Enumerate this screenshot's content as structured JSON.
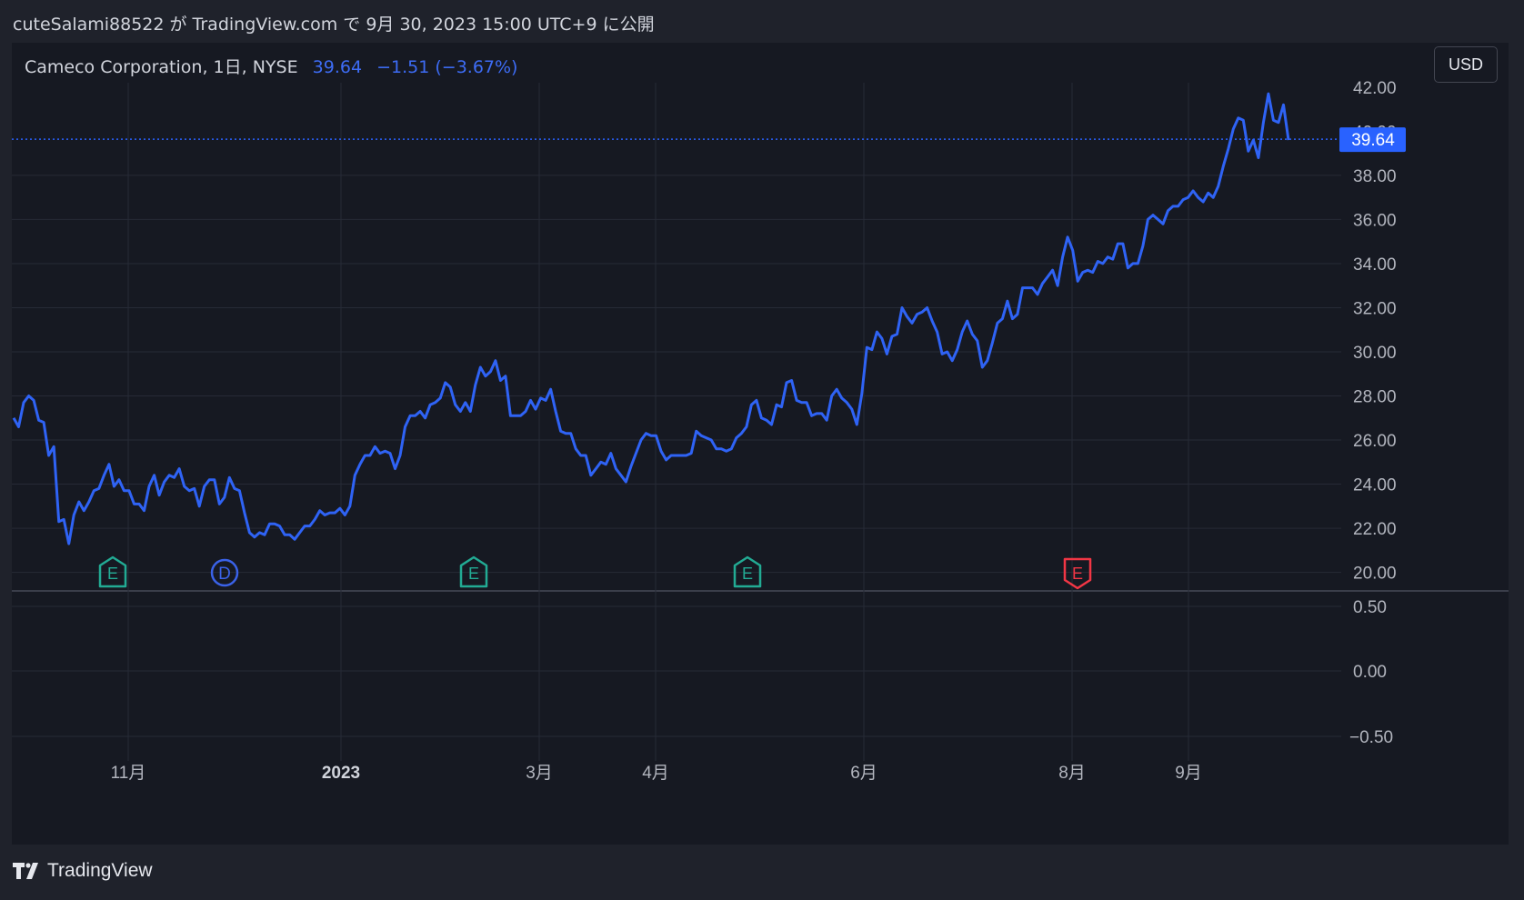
{
  "header": {
    "publisher_line": "cuteSalami88522 が TradingView.com で 9月 30, 2023 15:00 UTC+9 に公開"
  },
  "legend": {
    "symbol": "Cameco Corporation, 1日, NYSE",
    "price": "39.64",
    "change": "−1.51 (−3.67%)"
  },
  "currency": "USD",
  "last_price_label": "39.64",
  "footer": {
    "brand": "TradingView"
  },
  "colors": {
    "line": "#2f63f5",
    "last_price": "#2962ff",
    "earnings_past": "#22ab94",
    "earnings_next": "#f23645",
    "dividend": "#3a62e8",
    "background": "#161922",
    "grid": "#262a36"
  },
  "chart_data": {
    "type": "line",
    "title": "Cameco Corporation, 1日, NYSE",
    "xlabel": "",
    "ylabel": "",
    "ylim": [
      19.2,
      42.2
    ],
    "yticks": [
      20,
      22,
      24,
      26,
      28,
      30,
      32,
      34,
      36,
      38
    ],
    "yticks_partial": [
      "42.00",
      "40.00"
    ],
    "x_tick_labels": [
      "11月",
      "2023",
      "3月",
      "4月",
      "6月",
      "8月",
      "9月"
    ],
    "lower_pane": {
      "yticks": [
        "0.50",
        "0.00",
        "−0.50"
      ]
    },
    "events": [
      {
        "type": "E",
        "label": "E",
        "status": "past"
      },
      {
        "type": "D",
        "label": "D",
        "status": "past"
      },
      {
        "type": "E",
        "label": "E",
        "status": "past"
      },
      {
        "type": "E",
        "label": "E",
        "status": "past"
      },
      {
        "type": "E",
        "label": "E",
        "status": "upcoming"
      }
    ],
    "series": [
      {
        "values": [
          27.0,
          26.6,
          27.7,
          28.0,
          27.8,
          26.9,
          26.8,
          25.3,
          25.7,
          22.3,
          22.4,
          21.3,
          22.6,
          23.2,
          22.8,
          23.2,
          23.7,
          23.8,
          24.4,
          24.9,
          23.9,
          24.2,
          23.7,
          23.7,
          23.1,
          23.1,
          22.8,
          23.9,
          24.4,
          23.5,
          24.1,
          24.4,
          24.3,
          24.7,
          23.9,
          23.7,
          23.8,
          23.0,
          23.9,
          24.2,
          24.2,
          23.1,
          23.4,
          24.3,
          23.8,
          23.7,
          22.7,
          21.8,
          21.6,
          21.8,
          21.7,
          22.2,
          22.2,
          22.1,
          21.7,
          21.7,
          21.5,
          21.8,
          22.1,
          22.1,
          22.4,
          22.8,
          22.6,
          22.7,
          22.7,
          22.9,
          22.6,
          23.0,
          24.4,
          24.9,
          25.3,
          25.3,
          25.7,
          25.4,
          25.5,
          25.4,
          24.7,
          25.3,
          26.6,
          27.1,
          27.1,
          27.3,
          27.0,
          27.6,
          27.7,
          27.9,
          28.6,
          28.4,
          27.6,
          27.3,
          27.7,
          27.3,
          28.5,
          29.3,
          28.9,
          29.1,
          29.6,
          28.7,
          28.9,
          27.1,
          27.1,
          27.1,
          27.3,
          27.8,
          27.4,
          27.9,
          27.8,
          28.3,
          27.3,
          26.4,
          26.3,
          26.3,
          25.6,
          25.3,
          25.3,
          24.4,
          24.7,
          25.0,
          24.9,
          25.4,
          24.7,
          24.4,
          24.1,
          24.8,
          25.4,
          26.0,
          26.3,
          26.2,
          26.2,
          25.5,
          25.1,
          25.3,
          25.3,
          25.3,
          25.3,
          25.4,
          26.4,
          26.2,
          26.1,
          26.0,
          25.6,
          25.6,
          25.5,
          25.6,
          26.1,
          26.3,
          26.6,
          27.6,
          27.8,
          27.0,
          26.9,
          26.7,
          27.6,
          27.5,
          28.6,
          28.7,
          27.8,
          27.7,
          27.7,
          27.1,
          27.2,
          27.2,
          26.9,
          28.0,
          28.3,
          27.9,
          27.7,
          27.4,
          26.7,
          28.1,
          30.2,
          30.1,
          30.9,
          30.6,
          29.9,
          30.7,
          30.8,
          32.0,
          31.6,
          31.3,
          31.7,
          31.8,
          32.0,
          31.4,
          30.9,
          29.9,
          30.0,
          29.6,
          30.1,
          30.9,
          31.4,
          30.8,
          30.5,
          29.3,
          29.6,
          30.4,
          31.3,
          31.5,
          32.3,
          31.5,
          31.7,
          32.9,
          32.9,
          32.9,
          32.6,
          33.1,
          33.4,
          33.7,
          33.0,
          34.3,
          35.2,
          34.6,
          33.2,
          33.6,
          33.7,
          33.6,
          34.1,
          34.0,
          34.3,
          34.2,
          34.9,
          34.9,
          33.8,
          34.0,
          34.0,
          34.8,
          36.0,
          36.2,
          36.0,
          35.8,
          36.4,
          36.6,
          36.6,
          36.9,
          37.0,
          37.3,
          37.0,
          36.8,
          37.2,
          37.0,
          37.5,
          38.4,
          39.2,
          40.1,
          40.6,
          40.5,
          39.1,
          39.6,
          38.8,
          40.4,
          41.7,
          40.5,
          40.4,
          41.2,
          39.6
        ]
      }
    ]
  }
}
